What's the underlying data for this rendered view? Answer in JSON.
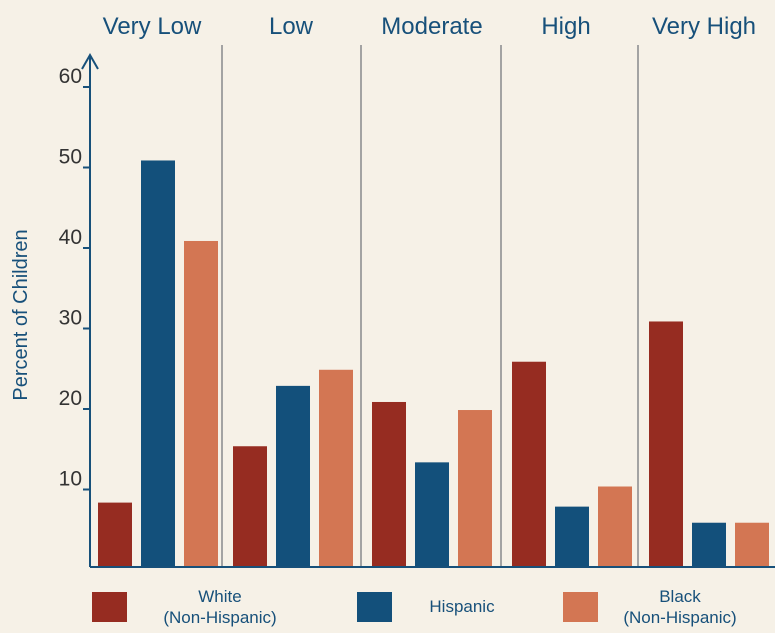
{
  "chart_data": {
    "type": "bar",
    "categories": [
      "Very Low",
      "Low",
      "Moderate",
      "High",
      "Very High"
    ],
    "series": [
      {
        "name": "White (Non-Hispanic)",
        "label_lines": [
          "White",
          "(Non-Hispanic)"
        ],
        "values": [
          8,
          15,
          20.5,
          25.5,
          30.5
        ],
        "color": "#962c21"
      },
      {
        "name": "Hispanic",
        "label_lines": [
          "Hispanic"
        ],
        "values": [
          50.5,
          22.5,
          13,
          7.5,
          5.5
        ],
        "color": "#13507b"
      },
      {
        "name": "Black (Non-Hispanic)",
        "label_lines": [
          "Black",
          "(Non-Hispanic)"
        ],
        "values": [
          40.5,
          24.5,
          19.5,
          10,
          5.5
        ],
        "color": "#d37653"
      }
    ],
    "yticks": [
      10,
      20,
      30,
      40,
      50,
      60
    ],
    "ylim": [
      0,
      64
    ],
    "ylabel": "Percent of Children",
    "xlabel": "",
    "title": "",
    "legend_position": "bottom",
    "grid": false,
    "colors": {
      "background": "#f6f1e7",
      "axis": "#17507a",
      "divider": "#a3a3a3",
      "tick_text": "#333333"
    }
  }
}
